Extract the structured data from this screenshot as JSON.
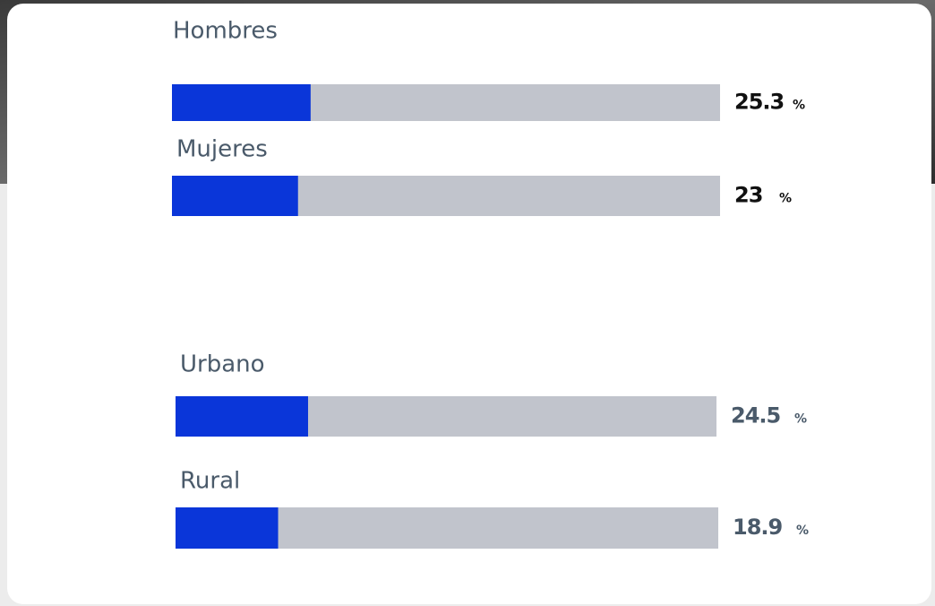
{
  "chart_data": [
    {
      "type": "bar",
      "orientation": "horizontal",
      "categories": [
        "Hombres",
        "Mujeres"
      ],
      "values": [
        25.3,
        23
      ],
      "unit": "%",
      "color": "#0a36d9",
      "track_color": "#c1c4cc",
      "value_color": "#111111",
      "xlim": [
        0,
        100
      ]
    },
    {
      "type": "bar",
      "orientation": "horizontal",
      "categories": [
        "Urbano",
        "Rural"
      ],
      "values": [
        24.5,
        18.9
      ],
      "unit": "%",
      "color": "#0a36d9",
      "track_color": "#c1c4cc",
      "value_color": "#4a5a6a",
      "xlim": [
        0,
        100
      ]
    }
  ]
}
